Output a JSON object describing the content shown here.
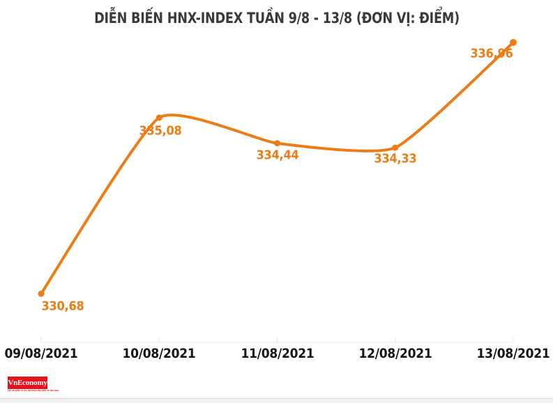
{
  "chart_data": {
    "type": "line",
    "title": "DIỄN BIẾN HNX-INDEX TUẦN 9/8 - 13/8 (ĐƠN VỊ: ĐIỂM)",
    "categories": [
      "09/08/2021",
      "10/08/2021",
      "11/08/2021",
      "12/08/2021",
      "13/08/2021"
    ],
    "values": [
      330.68,
      335.08,
      334.44,
      334.33,
      336.96
    ],
    "value_labels": [
      "330,68",
      "335,08",
      "334,44",
      "334,33",
      "336,96"
    ],
    "ylim": [
      330.68,
      336.96
    ],
    "smooth": true,
    "marker": "circle",
    "grid": false,
    "legend": "none",
    "line_color": "#ee7c15",
    "value_label_color": "#ee7c15",
    "title_color": "#3a3a3a",
    "axis_label_color": "#161616",
    "axis_line_color": "#e5e5e5"
  },
  "footer": {
    "logo_text": "VnEconomy",
    "logo_tagline": "TẠP CHÍ ĐIỆN TỬ CỦA HỘI KHOA HỌC KINH TẾ VIỆT NAM",
    "logo_bg_color": "#e8121a",
    "logo_text_color": "#ffffff"
  }
}
